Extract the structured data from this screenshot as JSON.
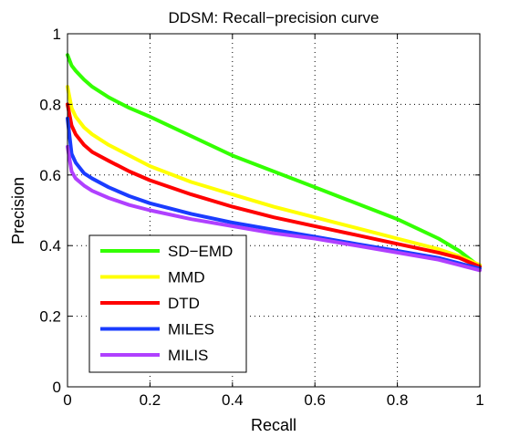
{
  "chart_data": {
    "type": "line",
    "title": "DDSM: Recall−precision curve",
    "xlabel": "Recall",
    "ylabel": "Precision",
    "xlim": [
      0,
      1
    ],
    "ylim": [
      0,
      1
    ],
    "x_ticks": [
      "0",
      "0.2",
      "0.4",
      "0.6",
      "0.8",
      "1"
    ],
    "y_ticks": [
      "0",
      "0.2",
      "0.4",
      "0.6",
      "0.8",
      "1"
    ],
    "grid": true,
    "legend_position": "bottom-left",
    "series": [
      {
        "name": "SD−EMD",
        "color": "#33ff00",
        "x": [
          0,
          0.01,
          0.02,
          0.04,
          0.06,
          0.1,
          0.15,
          0.2,
          0.3,
          0.4,
          0.5,
          0.6,
          0.7,
          0.8,
          0.9,
          0.95,
          1.0
        ],
        "y": [
          0.94,
          0.91,
          0.895,
          0.87,
          0.85,
          0.82,
          0.79,
          0.765,
          0.71,
          0.655,
          0.61,
          0.565,
          0.52,
          0.475,
          0.42,
          0.385,
          0.34
        ]
      },
      {
        "name": "MMD",
        "color": "#ffff00",
        "x": [
          0,
          0.01,
          0.02,
          0.04,
          0.06,
          0.1,
          0.15,
          0.2,
          0.3,
          0.4,
          0.5,
          0.6,
          0.7,
          0.8,
          0.9,
          0.95,
          1.0
        ],
        "y": [
          0.85,
          0.79,
          0.765,
          0.735,
          0.715,
          0.685,
          0.655,
          0.625,
          0.58,
          0.545,
          0.51,
          0.48,
          0.45,
          0.42,
          0.39,
          0.37,
          0.345
        ]
      },
      {
        "name": "DTD",
        "color": "#ff0000",
        "x": [
          0,
          0.01,
          0.02,
          0.04,
          0.06,
          0.1,
          0.15,
          0.2,
          0.3,
          0.4,
          0.5,
          0.6,
          0.7,
          0.8,
          0.9,
          0.95,
          1.0
        ],
        "y": [
          0.8,
          0.74,
          0.715,
          0.685,
          0.665,
          0.64,
          0.61,
          0.585,
          0.545,
          0.51,
          0.48,
          0.455,
          0.43,
          0.405,
          0.38,
          0.365,
          0.34
        ]
      },
      {
        "name": "MILES",
        "color": "#1a3cff",
        "x": [
          0,
          0.01,
          0.02,
          0.04,
          0.06,
          0.1,
          0.15,
          0.2,
          0.3,
          0.4,
          0.5,
          0.6,
          0.7,
          0.8,
          0.9,
          0.95,
          1.0
        ],
        "y": [
          0.76,
          0.66,
          0.635,
          0.605,
          0.59,
          0.565,
          0.54,
          0.52,
          0.49,
          0.465,
          0.445,
          0.425,
          0.405,
          0.385,
          0.365,
          0.35,
          0.335
        ]
      },
      {
        "name": "MILIS",
        "color": "#b040ff",
        "x": [
          0,
          0.01,
          0.02,
          0.04,
          0.06,
          0.1,
          0.15,
          0.2,
          0.3,
          0.4,
          0.5,
          0.6,
          0.7,
          0.8,
          0.9,
          0.95,
          1.0
        ],
        "y": [
          0.68,
          0.61,
          0.59,
          0.57,
          0.555,
          0.535,
          0.515,
          0.5,
          0.475,
          0.455,
          0.435,
          0.42,
          0.4,
          0.38,
          0.36,
          0.345,
          0.33
        ]
      }
    ]
  }
}
